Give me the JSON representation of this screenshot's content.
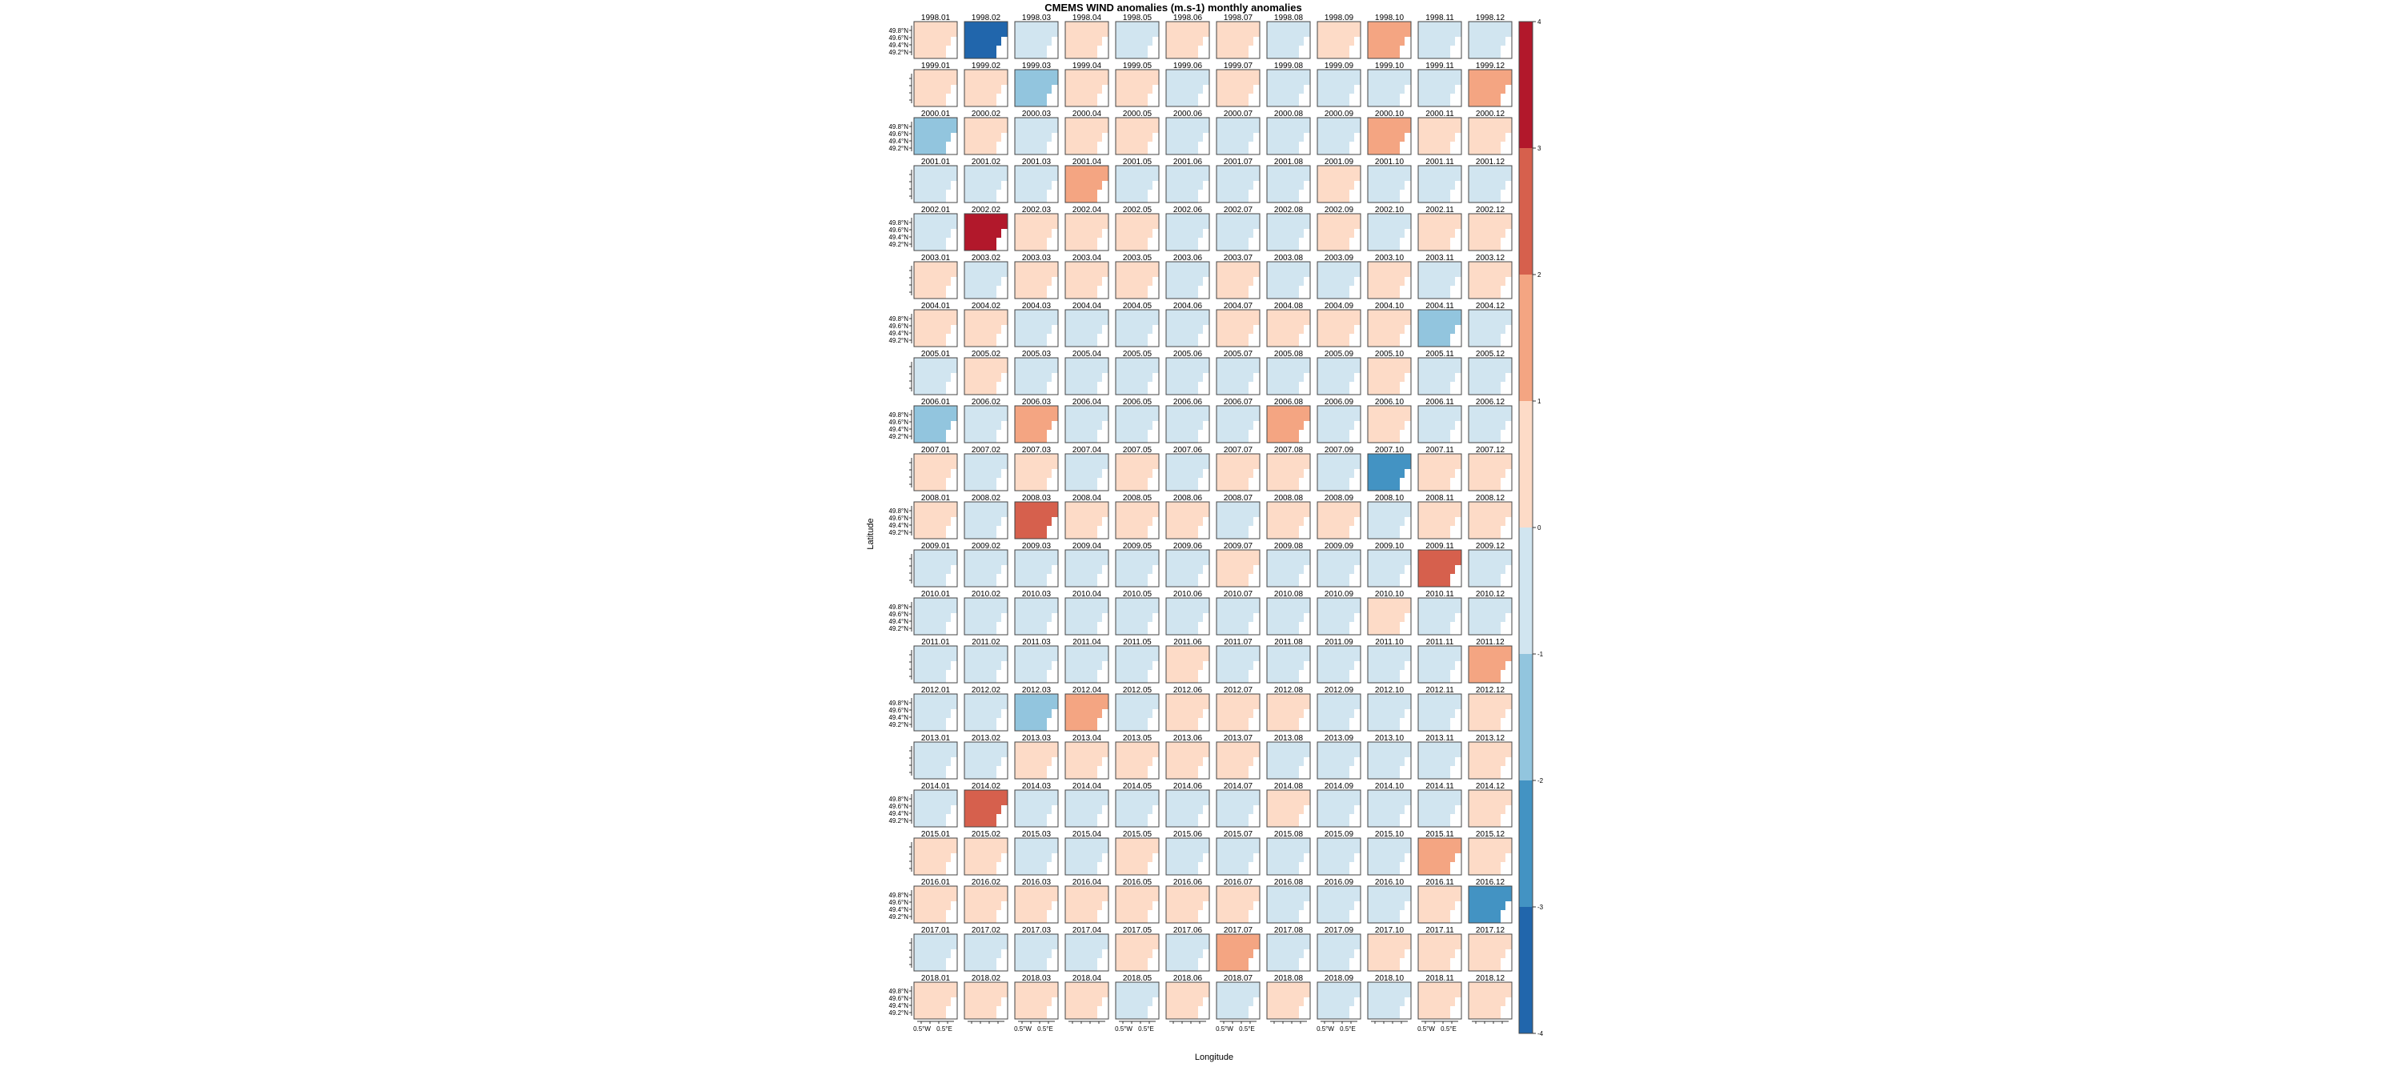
{
  "chart_data": {
    "type": "heatmap",
    "title": "CMEMS WIND anomalies (m.s-1) monthly anomalies",
    "xlabel": "Longitude",
    "ylabel": "Latitude",
    "years": [
      "1998",
      "1999",
      "2000",
      "2001",
      "2002",
      "2003",
      "2004",
      "2005",
      "2006",
      "2007",
      "2008",
      "2009",
      "2010",
      "2011",
      "2012",
      "2013",
      "2014",
      "2015",
      "2016",
      "2017",
      "2018"
    ],
    "months": [
      "01",
      "02",
      "03",
      "04",
      "05",
      "06",
      "07",
      "08",
      "09",
      "10",
      "11",
      "12"
    ],
    "lat_tick_labels": [
      "49.8°N",
      "49.6°N",
      "49.4°N",
      "49.2°N"
    ],
    "lon_tick_labels": [
      "0.5°W",
      "0.5°E"
    ],
    "colorbar": {
      "ticks": [
        4,
        3,
        2,
        1,
        0,
        -1,
        -2,
        -3,
        -4
      ],
      "levels": [
        3.5,
        2.5,
        1.5,
        0.5,
        -0.5,
        -1.5,
        -2.5,
        -3.5
      ],
      "colors": [
        "#b2182b",
        "#d6604d",
        "#f4a582",
        "#fddbc7",
        "#d1e5f0",
        "#92c5de",
        "#4393c3",
        "#2166ac"
      ],
      "range": [
        -4,
        4
      ]
    },
    "anomalies": [
      [
        0.9,
        -3.4,
        -0.3,
        0.2,
        -0.3,
        0.3,
        0.2,
        -0.6,
        0.2,
        1.1,
        -0.8,
        -0.6
      ],
      [
        0.3,
        0.2,
        -1.1,
        0.2,
        0.2,
        -0.2,
        0.3,
        -0.8,
        -0.4,
        -0.3,
        -0.4,
        1.7
      ],
      [
        -1.0,
        0.2,
        -0.3,
        0.8,
        0.2,
        -0.3,
        -0.2,
        -0.3,
        -0.2,
        1.1,
        1.0,
        0.4
      ],
      [
        -0.2,
        -0.2,
        -0.3,
        1.1,
        -0.2,
        -0.2,
        -0.3,
        -0.2,
        0.6,
        -0.3,
        -0.3,
        -0.3
      ],
      [
        -0.3,
        4.2,
        0.3,
        0.3,
        0.2,
        -0.2,
        -0.2,
        -0.6,
        0.8,
        -0.2,
        0.3,
        0.3
      ],
      [
        0.3,
        -0.2,
        0.2,
        0.2,
        0.2,
        -0.4,
        0.2,
        -0.3,
        -0.8,
        0.2,
        -0.3,
        0.2
      ],
      [
        0.5,
        0.3,
        -0.3,
        -0.2,
        -0.4,
        -0.4,
        0.2,
        0.3,
        1.0,
        1.0,
        -1.1,
        -0.7
      ],
      [
        -0.2,
        0.3,
        -0.2,
        -0.2,
        -0.2,
        -0.2,
        -0.3,
        -0.2,
        -0.8,
        0.3,
        -0.3,
        -0.2
      ],
      [
        -1.0,
        -0.3,
        1.1,
        -0.2,
        -0.2,
        -0.8,
        -0.3,
        1.1,
        -0.6,
        0.3,
        -0.2,
        -0.3
      ],
      [
        0.9,
        -0.2,
        0.6,
        -0.8,
        0.8,
        -0.6,
        0.9,
        0.3,
        -0.2,
        -2.1,
        0.2,
        0.3
      ],
      [
        0.4,
        -0.2,
        2.5,
        0.3,
        0.6,
        0.3,
        -0.2,
        0.7,
        0.7,
        -0.3,
        0.3,
        0.3
      ],
      [
        -0.2,
        -0.6,
        -0.3,
        -0.9,
        -0.2,
        -0.2,
        0.3,
        -0.3,
        -0.2,
        -0.3,
        2.4,
        -0.3
      ],
      [
        -0.7,
        -0.4,
        -0.3,
        -0.6,
        -0.2,
        -0.3,
        -0.8,
        -0.3,
        -0.3,
        0.3,
        -0.3,
        -0.8
      ],
      [
        -0.6,
        -0.3,
        -0.3,
        -0.9,
        -0.3,
        0.9,
        -0.3,
        -0.3,
        -0.2,
        -0.3,
        -0.8,
        1.1
      ],
      [
        -0.3,
        -0.3,
        -1.4,
        1.1,
        -0.3,
        0.6,
        0.3,
        0.3,
        -0.3,
        -0.3,
        -0.8,
        0.3
      ],
      [
        -0.9,
        -0.2,
        0.3,
        0.6,
        0.2,
        0.9,
        0.3,
        -0.2,
        -0.3,
        -0.2,
        -0.3,
        0.3
      ],
      [
        -0.3,
        2.6,
        -0.3,
        -0.2,
        -0.2,
        -0.6,
        -0.2,
        0.7,
        -0.9,
        -0.2,
        -0.2,
        0.3
      ],
      [
        0.3,
        0.2,
        -0.2,
        -0.2,
        0.2,
        -0.2,
        -0.2,
        -0.2,
        -0.8,
        -0.2,
        1.1,
        0.8
      ],
      [
        0.9,
        0.8,
        0.3,
        0.2,
        0.3,
        0.3,
        0.2,
        -0.2,
        -0.2,
        -0.8,
        0.3,
        -2.0
      ],
      [
        -0.3,
        -0.3,
        -0.2,
        -0.2,
        0.3,
        -0.3,
        1.2,
        -0.2,
        -0.7,
        0.3,
        0.3,
        0.5
      ],
      [
        0.7,
        0.8,
        0.8,
        0.3,
        -0.3,
        0.2,
        -0.9,
        0.3,
        -0.3,
        -0.3,
        0.3,
        0.3
      ]
    ]
  }
}
